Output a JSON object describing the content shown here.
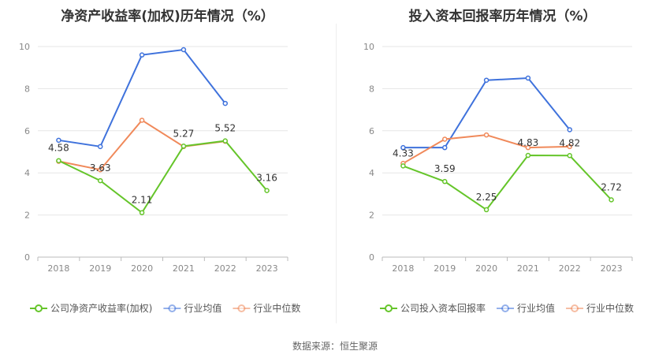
{
  "source_label": "数据来源：恒生聚源",
  "colors": {
    "company": "#65c52a",
    "industry_avg": "#3f72dc",
    "industry_median": "#f0895a"
  },
  "chart_data": [
    {
      "type": "line",
      "title": "净资产收益率(加权)历年情况（%）",
      "x": [
        "2018",
        "2019",
        "2020",
        "2021",
        "2022",
        "2023"
      ],
      "ylim": [
        0,
        10
      ],
      "yticks": [
        0,
        2,
        4,
        6,
        8,
        10
      ],
      "grid": true,
      "legend_position": "bottom",
      "series": [
        {
          "name": "公司净资产收益率(加权)",
          "key": "company",
          "values": [
            4.58,
            3.63,
            2.11,
            5.27,
            5.52,
            3.16
          ],
          "labels": [
            "4.58",
            "3.63",
            "2.11",
            "5.27",
            "5.52",
            "3.16"
          ]
        },
        {
          "name": "行业均值",
          "key": "industry_avg",
          "values": [
            5.55,
            5.25,
            9.6,
            9.85,
            7.3,
            null
          ]
        },
        {
          "name": "行业中位数",
          "key": "industry_median",
          "values": [
            4.55,
            4.15,
            6.5,
            5.25,
            5.5,
            null
          ]
        }
      ]
    },
    {
      "type": "line",
      "title": "投入资本回报率历年情况（%）",
      "x": [
        "2018",
        "2019",
        "2020",
        "2021",
        "2022",
        "2023"
      ],
      "ylim": [
        0,
        10
      ],
      "yticks": [
        0,
        2,
        4,
        6,
        8,
        10
      ],
      "grid": true,
      "legend_position": "bottom",
      "series": [
        {
          "name": "公司投入资本回报率",
          "key": "company",
          "values": [
            4.33,
            3.59,
            2.25,
            4.83,
            4.82,
            2.72
          ],
          "labels": [
            "4.33",
            "3.59",
            "2.25",
            "4.83",
            "4.82",
            "2.72"
          ]
        },
        {
          "name": "行业均值",
          "key": "industry_avg",
          "values": [
            5.2,
            5.2,
            8.4,
            8.5,
            6.05,
            null
          ]
        },
        {
          "name": "行业中位数",
          "key": "industry_median",
          "values": [
            4.45,
            5.6,
            5.8,
            5.2,
            5.25,
            null
          ]
        }
      ]
    }
  ]
}
